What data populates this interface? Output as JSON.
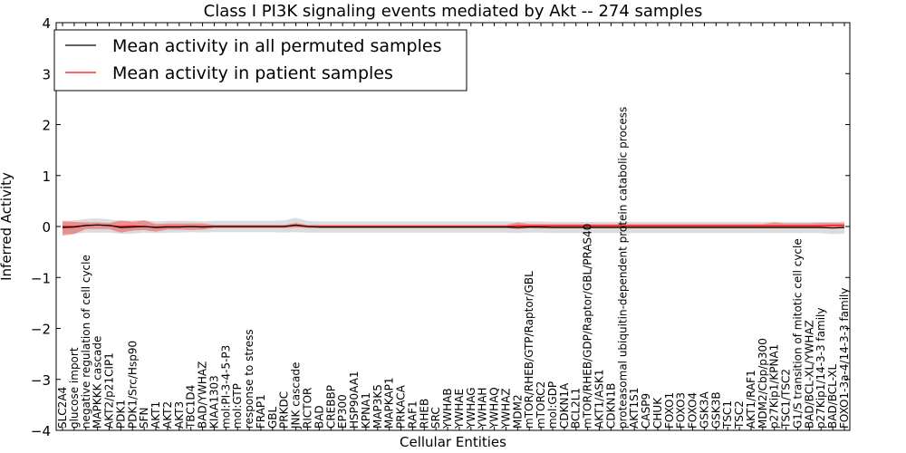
{
  "chart_data": {
    "type": "line",
    "title": "Class I PI3K signaling events mediated by Akt -- 274 samples",
    "xlabel": "Cellular Entities",
    "ylabel": "Inferred Activity",
    "ylim": [
      -4,
      4
    ],
    "yticks": [
      -4,
      -3,
      -2,
      -1,
      0,
      1,
      2,
      3,
      4
    ],
    "ytick_labels": [
      "−4",
      "−3",
      "−2",
      "−1",
      "0",
      "1",
      "2",
      "3",
      "4"
    ],
    "legend_position": "top-left",
    "categories": [
      "SLC2A4",
      "glucose import",
      "negative regulation of cell cycle",
      "MAPKKK cascade",
      "AKT2/p21CIP1",
      "PDK1",
      "PDK1/Src/Hsp90",
      "SFN",
      "AKT1",
      "AKT2",
      "AKT3",
      "TBC1D4",
      "BAD/YWHAZ",
      "KIAA1303",
      "mol:PI-3-4-5-P3",
      "mol:GTP",
      "response to stress",
      "FRAP1",
      "GBL",
      "PRKDC",
      "JNK cascade",
      "RICTOR",
      "BAD",
      "CREBBP",
      "EP300",
      "HSP90AA1",
      "KPNA1",
      "MAP3K5",
      "MAPKAP1",
      "PRKACA",
      "RAF1",
      "RHEB",
      "SRC",
      "YWHAB",
      "YWHAE",
      "YWHAG",
      "YWHAH",
      "YWHAQ",
      "YWHAZ",
      "MDM2",
      "mTOR/RHEB/GTP/Raptor/GBL",
      "mTORC2",
      "mol:GDP",
      "CDKN1A",
      "BCL2L1",
      "mTOR/RHEB/GDP/Raptor/GBL/PRAS40",
      "AKT1/ASK1",
      "CDKN1B",
      "proteasomal ubiquitin-dependent protein catabolic process",
      "AKT1S1",
      "CASP9",
      "CHUK",
      "FOXO1",
      "FOXO3",
      "FOXO4",
      "GSK3A",
      "GSK3B",
      "TSC1",
      "TSC2",
      "AKT1/RAF1",
      "MDM2/Cbp/p300",
      "p27Kip1/KPNA1",
      "TSC1/TSC2",
      "G1/S transition of mitotic cell cycle",
      "BAD/BCL-XL/YWHAZ",
      "p27Kip1/14-3-3 family",
      "BAD/BCL-XL",
      "FOXO1-3a-4/14-3-3 family"
    ],
    "series": [
      {
        "name": "Mean activity in all permuted samples",
        "color": "#000000",
        "values": [
          -0.02,
          -0.01,
          0.02,
          0.03,
          0.02,
          -0.02,
          -0.01,
          0.0,
          -0.02,
          -0.01,
          -0.01,
          0.0,
          -0.01,
          0.0,
          0.0,
          0.0,
          0.0,
          0.0,
          0.0,
          0.0,
          0.03,
          0.0,
          -0.01,
          -0.01,
          -0.01,
          -0.01,
          -0.01,
          -0.01,
          -0.01,
          -0.01,
          -0.01,
          -0.01,
          -0.01,
          -0.01,
          -0.01,
          -0.01,
          -0.01,
          -0.01,
          -0.01,
          -0.02,
          -0.01,
          -0.01,
          -0.02,
          -0.02,
          -0.02,
          -0.02,
          -0.02,
          -0.02,
          -0.02,
          -0.02,
          -0.02,
          -0.02,
          -0.02,
          -0.02,
          -0.02,
          -0.02,
          -0.02,
          -0.02,
          -0.02,
          -0.02,
          -0.02,
          -0.02,
          -0.02,
          -0.02,
          -0.02,
          -0.02,
          -0.03,
          -0.02
        ],
        "lower": [
          -0.15,
          -0.14,
          -0.12,
          -0.12,
          -0.12,
          -0.14,
          -0.14,
          -0.12,
          -0.13,
          -0.12,
          -0.12,
          -0.11,
          -0.12,
          -0.11,
          -0.11,
          -0.11,
          -0.11,
          -0.11,
          -0.11,
          -0.12,
          -0.11,
          -0.12,
          -0.12,
          -0.12,
          -0.12,
          -0.12,
          -0.12,
          -0.12,
          -0.12,
          -0.12,
          -0.12,
          -0.12,
          -0.12,
          -0.12,
          -0.12,
          -0.12,
          -0.12,
          -0.12,
          -0.12,
          -0.13,
          -0.12,
          -0.12,
          -0.13,
          -0.13,
          -0.13,
          -0.13,
          -0.13,
          -0.13,
          -0.13,
          -0.13,
          -0.13,
          -0.13,
          -0.13,
          -0.13,
          -0.13,
          -0.13,
          -0.13,
          -0.13,
          -0.13,
          -0.13,
          -0.13,
          -0.13,
          -0.13,
          -0.13,
          -0.13,
          -0.13,
          -0.15,
          -0.14
        ],
        "upper": [
          0.11,
          0.12,
          0.15,
          0.16,
          0.14,
          0.11,
          0.12,
          0.12,
          0.1,
          0.11,
          0.11,
          0.11,
          0.1,
          0.11,
          0.11,
          0.11,
          0.11,
          0.11,
          0.11,
          0.12,
          0.17,
          0.11,
          0.1,
          0.1,
          0.1,
          0.1,
          0.1,
          0.1,
          0.1,
          0.1,
          0.1,
          0.1,
          0.1,
          0.1,
          0.1,
          0.1,
          0.1,
          0.1,
          0.1,
          0.09,
          0.1,
          0.1,
          0.09,
          0.09,
          0.09,
          0.09,
          0.09,
          0.09,
          0.09,
          0.09,
          0.09,
          0.09,
          0.09,
          0.09,
          0.09,
          0.09,
          0.09,
          0.09,
          0.09,
          0.09,
          0.09,
          0.09,
          0.09,
          0.09,
          0.09,
          0.09,
          0.09,
          0.1
        ]
      },
      {
        "name": "Mean activity in patient samples",
        "color": "#ff0000",
        "values": [
          0.0,
          0.0,
          0.02,
          0.03,
          0.02,
          0.0,
          0.01,
          0.0,
          -0.01,
          0.0,
          0.0,
          0.0,
          0.0,
          0.0,
          0.0,
          0.0,
          0.0,
          0.0,
          0.0,
          0.0,
          0.02,
          0.0,
          0.0,
          0.0,
          0.0,
          0.0,
          0.0,
          0.0,
          0.0,
          0.0,
          0.0,
          0.0,
          0.0,
          0.0,
          0.0,
          0.0,
          0.0,
          0.0,
          0.0,
          0.01,
          0.01,
          0.01,
          0.01,
          0.01,
          0.01,
          0.01,
          0.01,
          0.01,
          0.01,
          0.01,
          0.01,
          0.01,
          0.01,
          0.01,
          0.01,
          0.01,
          0.01,
          0.01,
          0.01,
          0.01,
          0.01,
          0.01,
          0.01,
          0.01,
          0.01,
          0.01,
          0.02,
          0.02
        ],
        "lower": [
          -0.18,
          -0.15,
          -0.05,
          -0.05,
          -0.05,
          -0.12,
          -0.08,
          -0.07,
          -0.1,
          -0.06,
          -0.06,
          -0.07,
          -0.06,
          -0.03,
          -0.03,
          -0.03,
          -0.03,
          -0.03,
          -0.03,
          -0.03,
          -0.02,
          -0.03,
          -0.03,
          -0.03,
          -0.03,
          -0.03,
          -0.03,
          -0.03,
          -0.03,
          -0.03,
          -0.03,
          -0.03,
          -0.03,
          -0.03,
          -0.03,
          -0.03,
          -0.03,
          -0.03,
          -0.03,
          -0.05,
          -0.03,
          -0.04,
          -0.03,
          -0.03,
          -0.03,
          -0.03,
          -0.03,
          -0.03,
          -0.03,
          -0.03,
          -0.03,
          -0.03,
          -0.03,
          -0.03,
          -0.03,
          -0.03,
          -0.03,
          -0.03,
          -0.03,
          -0.03,
          -0.03,
          -0.03,
          -0.03,
          -0.03,
          -0.03,
          -0.03,
          -0.02,
          -0.02
        ],
        "upper": [
          0.1,
          0.09,
          0.08,
          0.08,
          0.07,
          0.12,
          0.09,
          0.12,
          0.05,
          0.06,
          0.06,
          0.06,
          0.06,
          0.03,
          0.03,
          0.03,
          0.03,
          0.03,
          0.03,
          0.03,
          0.07,
          0.03,
          0.03,
          0.03,
          0.03,
          0.03,
          0.03,
          0.03,
          0.03,
          0.03,
          0.03,
          0.03,
          0.03,
          0.03,
          0.03,
          0.03,
          0.03,
          0.03,
          0.03,
          0.08,
          0.05,
          0.05,
          0.05,
          0.05,
          0.05,
          0.05,
          0.05,
          0.05,
          0.05,
          0.05,
          0.05,
          0.05,
          0.05,
          0.05,
          0.05,
          0.05,
          0.05,
          0.05,
          0.05,
          0.05,
          0.05,
          0.08,
          0.06,
          0.06,
          0.06,
          0.07,
          0.07,
          0.07
        ]
      }
    ]
  }
}
